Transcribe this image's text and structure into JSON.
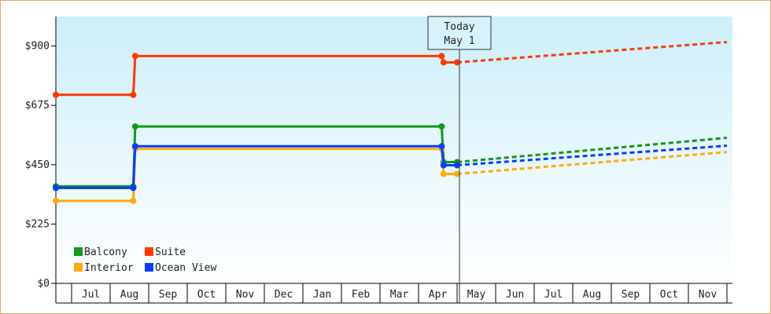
{
  "chart_data": {
    "type": "line",
    "title": "",
    "xlabel": "",
    "ylabel": "",
    "ylim": [
      0,
      1012
    ],
    "y_ticks": [
      "$0",
      "$225",
      "$450",
      "$675",
      "$900"
    ],
    "y_tick_values": [
      0,
      225,
      450,
      675,
      900
    ],
    "x_months": [
      "Jul",
      "Aug",
      "Sep",
      "Oct",
      "Nov",
      "Dec",
      "Jan",
      "Feb",
      "Mar",
      "Apr",
      "May",
      "Jun",
      "Jul",
      "Aug",
      "Sep",
      "Oct",
      "Nov"
    ],
    "today": {
      "line1": "Today",
      "line2": "May 1",
      "month_index": 10.0
    },
    "grid": false,
    "legend_position": "bottom-left",
    "series": [
      {
        "name": "Balcony",
        "color": "#11991a",
        "historical": [
          [
            0,
            368
          ],
          [
            1.6,
            368
          ],
          [
            1.65,
            595
          ],
          [
            9.6,
            595
          ],
          [
            9.65,
            460
          ],
          [
            10.0,
            460
          ]
        ],
        "forecast": [
          [
            10.0,
            460
          ],
          [
            17.0,
            552
          ]
        ]
      },
      {
        "name": "Suite",
        "color": "#ff3a00",
        "historical": [
          [
            0,
            715
          ],
          [
            1.6,
            715
          ],
          [
            1.65,
            862
          ],
          [
            9.6,
            862
          ],
          [
            9.65,
            838
          ],
          [
            10.0,
            838
          ]
        ],
        "forecast": [
          [
            10.0,
            838
          ],
          [
            17.0,
            915
          ]
        ]
      },
      {
        "name": "Interior",
        "color": "#ffaa10",
        "historical": [
          [
            0,
            313
          ],
          [
            1.6,
            313
          ],
          [
            1.65,
            510
          ],
          [
            9.6,
            510
          ],
          [
            9.65,
            415
          ],
          [
            10.0,
            415
          ]
        ],
        "forecast": [
          [
            10.0,
            415
          ],
          [
            17.0,
            498
          ]
        ]
      },
      {
        "name": "Ocean View",
        "color": "#0a3dff",
        "historical": [
          [
            0,
            362
          ],
          [
            1.6,
            362
          ],
          [
            1.65,
            520
          ],
          [
            9.6,
            520
          ],
          [
            9.65,
            448
          ],
          [
            10.0,
            448
          ]
        ],
        "forecast": [
          [
            10.0,
            448
          ],
          [
            17.0,
            522
          ]
        ]
      }
    ]
  }
}
